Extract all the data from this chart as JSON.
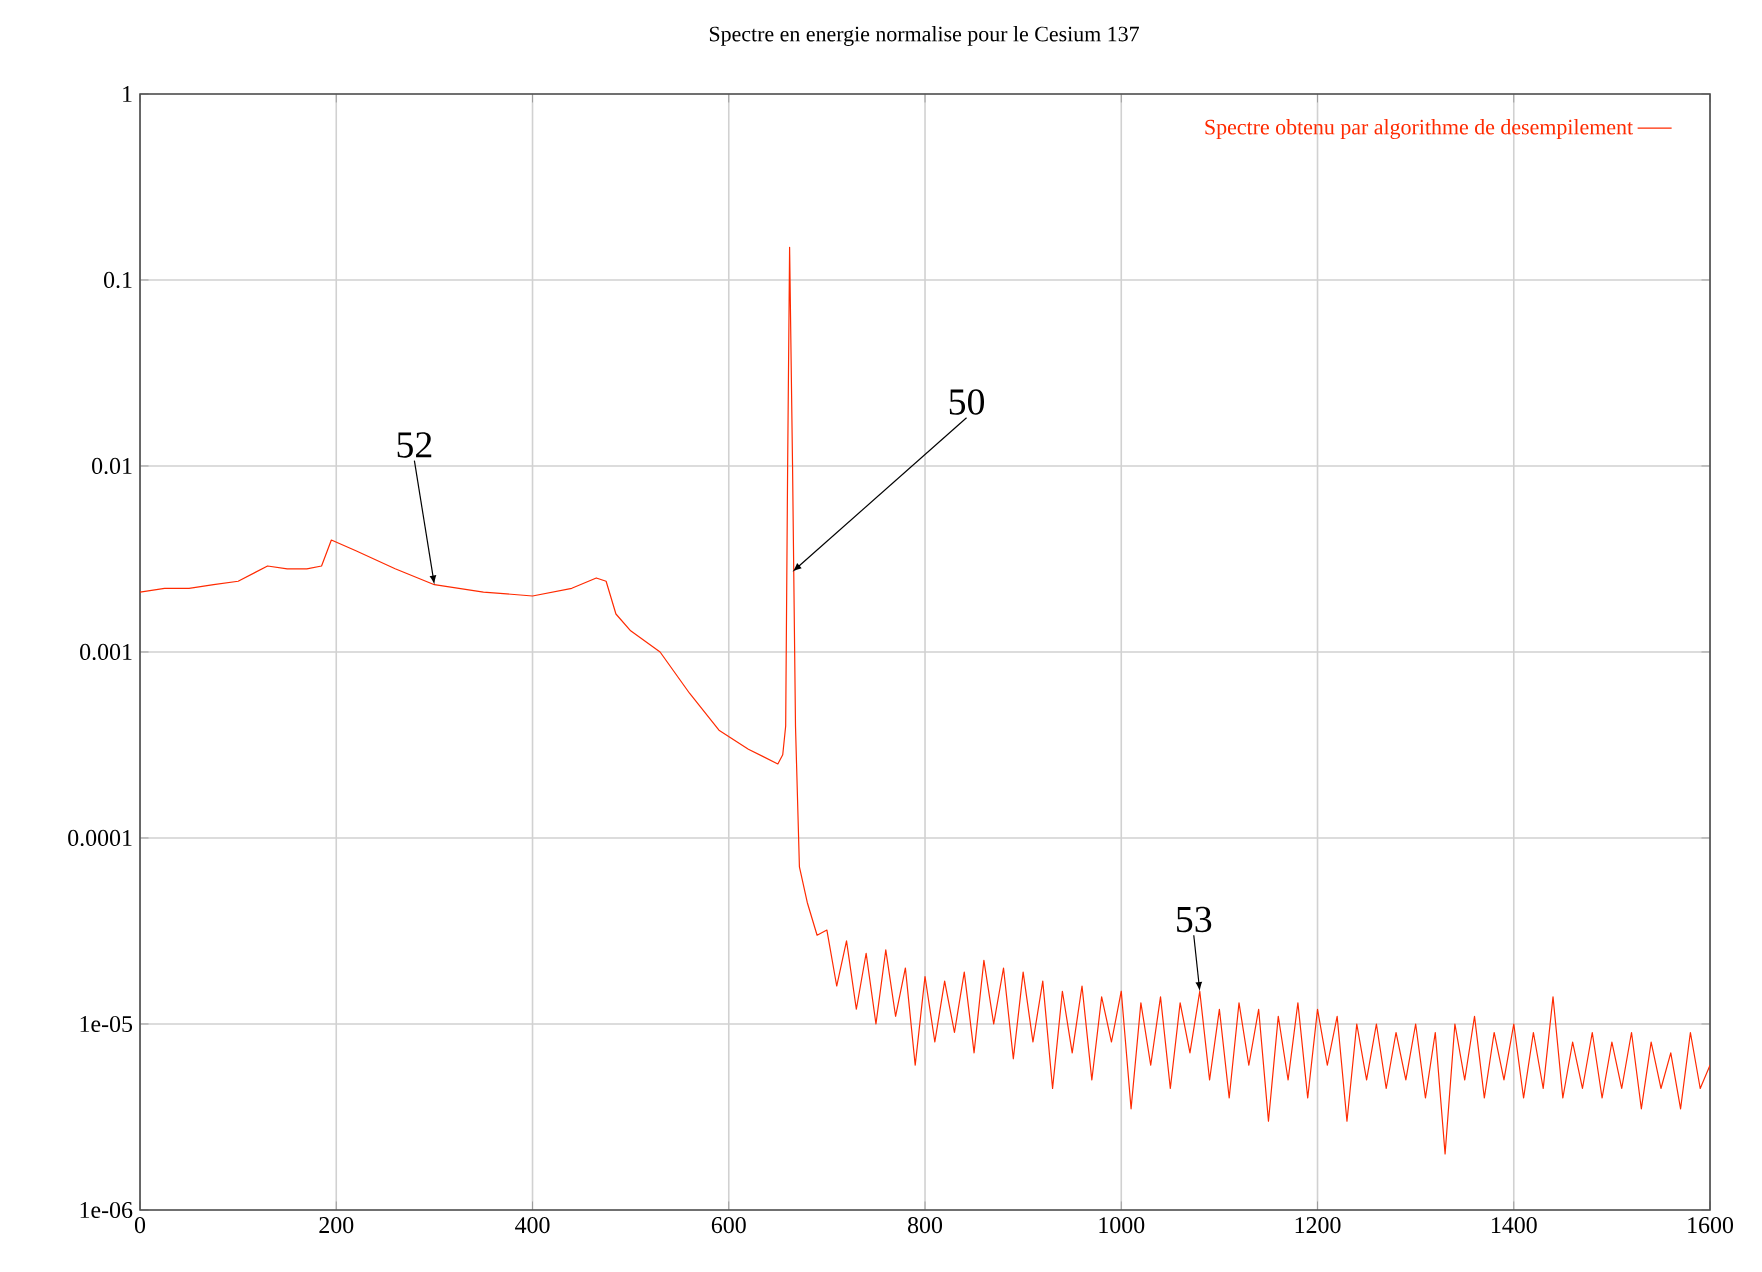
{
  "chart_data": {
    "type": "line",
    "title": "Spectre en energie normalise pour le Cesium 137",
    "x": [
      0,
      25,
      50,
      75,
      100,
      130,
      150,
      170,
      185,
      195,
      220,
      260,
      300,
      350,
      400,
      440,
      465,
      475,
      485,
      500,
      530,
      560,
      590,
      620,
      650,
      655,
      658,
      660,
      662,
      665,
      668,
      672,
      680,
      690,
      700,
      710,
      720,
      730,
      740,
      750,
      760,
      770,
      780,
      790,
      800,
      810,
      820,
      830,
      840,
      850,
      860,
      870,
      880,
      890,
      900,
      910,
      920,
      930,
      940,
      950,
      960,
      970,
      980,
      990,
      1000,
      1010,
      1020,
      1030,
      1040,
      1050,
      1060,
      1070,
      1080,
      1090,
      1100,
      1110,
      1120,
      1130,
      1140,
      1150,
      1160,
      1170,
      1180,
      1190,
      1200,
      1210,
      1220,
      1230,
      1240,
      1250,
      1260,
      1270,
      1280,
      1290,
      1300,
      1310,
      1320,
      1330,
      1340,
      1350,
      1360,
      1370,
      1380,
      1390,
      1400,
      1410,
      1420,
      1430,
      1440,
      1450,
      1460,
      1470,
      1480,
      1490,
      1500,
      1510,
      1520,
      1530,
      1540,
      1550,
      1560,
      1570,
      1580,
      1590,
      1600
    ],
    "series": [
      {
        "name": "Spectre obtenu par algorithme de desempilement",
        "color": "#ff2a00",
        "values": [
          0.0021,
          0.0022,
          0.0022,
          0.0023,
          0.0024,
          0.0029,
          0.0028,
          0.0028,
          0.0029,
          0.004,
          0.0035,
          0.0028,
          0.0023,
          0.0021,
          0.002,
          0.0022,
          0.0025,
          0.0024,
          0.0016,
          0.0013,
          0.001,
          0.0006,
          0.00038,
          0.0003,
          0.00025,
          0.00028,
          0.0004,
          0.01,
          0.15,
          0.01,
          0.0004,
          7e-05,
          4.5e-05,
          3e-05,
          3.2e-05,
          1.6e-05,
          2.8e-05,
          1.2e-05,
          2.4e-05,
          1e-05,
          2.5e-05,
          1.1e-05,
          2e-05,
          6e-06,
          1.8e-05,
          8e-06,
          1.7e-05,
          9e-06,
          1.9e-05,
          7e-06,
          2.2e-05,
          1e-05,
          2e-05,
          6.5e-06,
          1.9e-05,
          8e-06,
          1.7e-05,
          4.5e-06,
          1.5e-05,
          7e-06,
          1.6e-05,
          5e-06,
          1.4e-05,
          8e-06,
          1.5e-05,
          3.5e-06,
          1.3e-05,
          6e-06,
          1.4e-05,
          4.5e-06,
          1.3e-05,
          7e-06,
          1.5e-05,
          5e-06,
          1.2e-05,
          4e-06,
          1.3e-05,
          6e-06,
          1.2e-05,
          3e-06,
          1.1e-05,
          5e-06,
          1.3e-05,
          4e-06,
          1.2e-05,
          6e-06,
          1.1e-05,
          3e-06,
          1e-05,
          5e-06,
          1e-05,
          4.5e-06,
          9e-06,
          5e-06,
          1e-05,
          4e-06,
          9e-06,
          2e-06,
          1e-05,
          5e-06,
          1.1e-05,
          4e-06,
          9e-06,
          5e-06,
          1e-05,
          4e-06,
          9e-06,
          4.5e-06,
          1.4e-05,
          4e-06,
          8e-06,
          4.5e-06,
          9e-06,
          4e-06,
          8e-06,
          4.5e-06,
          9e-06,
          3.5e-06,
          8e-06,
          4.5e-06,
          7e-06,
          3.5e-06,
          9e-06,
          4.5e-06,
          6e-06
        ]
      }
    ],
    "xlim": [
      0,
      1600
    ],
    "xticks": [
      0,
      200,
      400,
      600,
      800,
      1000,
      1200,
      1400,
      1600
    ],
    "ylim": [
      1e-06,
      1
    ],
    "log": "y",
    "yticks": [
      1,
      0.1,
      0.01,
      0.001,
      0.0001,
      {
        "value": 1e-05,
        "label": "1e-05"
      },
      {
        "value": 1e-06,
        "label": "1e-06"
      }
    ],
    "grid": true,
    "legend": "top right",
    "annotations": [
      {
        "text": "52",
        "x": 300,
        "y": 0.0023
      },
      {
        "text": "50",
        "x": 665,
        "y": 0.0027
      },
      {
        "text": "53",
        "x": 1080,
        "y": 1.5e-05
      }
    ]
  }
}
